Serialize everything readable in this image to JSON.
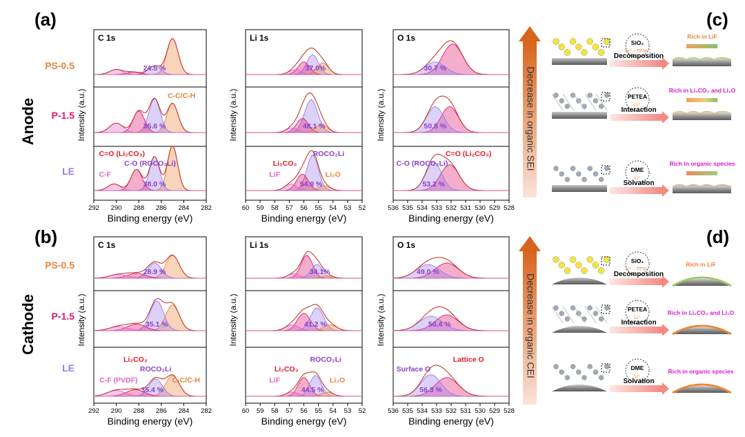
{
  "figure": {
    "panel_labels": {
      "a": "(a)",
      "b": "(b)",
      "c": "(c)",
      "d": "(d)"
    },
    "row_labels": {
      "anode": "Anode",
      "cathode": "Cathode"
    },
    "sample_labels": [
      "PS-0.5",
      "P-1.5",
      "LE"
    ],
    "arrows": {
      "anode": "Decrease in organic SEI",
      "cathode": "Decrease in organic CEI"
    },
    "xlabel": "Binding energy (eV)",
    "ylabel": "Intensity (a.u.)",
    "colors": {
      "ps": "#e8833a",
      "p": "#e0186c",
      "le": "#9b7ae8",
      "purple_text": "#8a3fc9",
      "red_text": "#e01b2a",
      "pink_text": "#e062c6",
      "orange_text": "#e8833a"
    }
  },
  "chart_data": [
    {
      "type": "line",
      "panel": "a",
      "title": "C 1s",
      "xlim": [
        292,
        282
      ],
      "xticks": [
        292,
        290,
        288,
        286,
        284,
        282
      ],
      "rows": [
        {
          "sample": "PS-0.5",
          "peaks": [
            {
              "c": 285.0,
              "a": 1.0,
              "w": 0.5,
              "color": "#e8833a"
            },
            {
              "c": 286.6,
              "a": 0.24,
              "w": 0.55,
              "color": "#9b7ae8"
            },
            {
              "c": 288.5,
              "a": 0.07,
              "w": 0.6,
              "color": "#e0186c"
            },
            {
              "c": 290.0,
              "a": 0.14,
              "w": 0.6,
              "color": "#e062c6"
            }
          ]
        },
        {
          "sample": "P-1.5",
          "peaks": [
            {
              "c": 285.0,
              "a": 0.62,
              "w": 0.5,
              "color": "#e8833a"
            },
            {
              "c": 286.6,
              "a": 0.72,
              "w": 0.5,
              "color": "#9b7ae8"
            },
            {
              "c": 288.0,
              "a": 0.46,
              "w": 0.5,
              "color": "#e0186c"
            },
            {
              "c": 290.0,
              "a": 0.2,
              "w": 0.6,
              "color": "#e062c6"
            }
          ]
        },
        {
          "sample": "LE",
          "peaks": [
            {
              "c": 285.0,
              "a": 0.95,
              "w": 0.45,
              "color": "#e8833a"
            },
            {
              "c": 286.6,
              "a": 0.72,
              "w": 0.45,
              "color": "#9b7ae8"
            },
            {
              "c": 288.2,
              "a": 0.45,
              "w": 0.5,
              "color": "#e0186c"
            },
            {
              "c": 290.2,
              "a": 0.14,
              "w": 0.55,
              "color": "#e062c6"
            }
          ]
        }
      ],
      "annotations": [
        {
          "row": 0,
          "text": "24.5 %",
          "x": 286.6,
          "color": "#8a3fc9"
        },
        {
          "row": 1,
          "text": "35.6 %",
          "x": 286.6,
          "color": "#8a3fc9"
        },
        {
          "row": 1,
          "text": "C-C/C-H",
          "x": 284.2,
          "color": "#e8833a"
        },
        {
          "row": 2,
          "text": "C-O (ROCO₂Li)",
          "x": 287.0,
          "color": "#8a3fc9"
        },
        {
          "row": 2,
          "text": "C=O (Li₂CO₃)",
          "x": 289.5,
          "color": "#e01b2a"
        },
        {
          "row": 2,
          "text": "C-F",
          "x": 291.0,
          "color": "#e062c6"
        },
        {
          "row": 2,
          "text": "38.0 %",
          "x": 286.6,
          "color": "#8a3fc9"
        }
      ]
    },
    {
      "type": "line",
      "panel": "a",
      "title": "Li 1s",
      "xlim": [
        60,
        52
      ],
      "xticks": [
        60,
        59,
        58,
        57,
        56,
        55,
        54,
        53,
        52
      ],
      "rows": [
        {
          "sample": "PS-0.5",
          "peaks": [
            {
              "c": 55.4,
              "a": 0.55,
              "w": 0.4,
              "color": "#9b7ae8"
            },
            {
              "c": 56.0,
              "a": 0.35,
              "w": 0.4,
              "color": "#e0186c"
            },
            {
              "c": 54.7,
              "a": 0.32,
              "w": 0.4,
              "color": "#e8833a"
            },
            {
              "c": 56.6,
              "a": 0.14,
              "w": 0.4,
              "color": "#e062c6"
            }
          ]
        },
        {
          "sample": "P-1.5",
          "peaks": [
            {
              "c": 55.5,
              "a": 0.7,
              "w": 0.45,
              "color": "#9b7ae8"
            },
            {
              "c": 56.1,
              "a": 0.3,
              "w": 0.4,
              "color": "#e0186c"
            },
            {
              "c": 54.8,
              "a": 0.18,
              "w": 0.4,
              "color": "#e8833a"
            },
            {
              "c": 56.8,
              "a": 0.1,
              "w": 0.4,
              "color": "#e062c6"
            }
          ]
        },
        {
          "sample": "LE",
          "peaks": [
            {
              "c": 55.4,
              "a": 0.75,
              "w": 0.4,
              "color": "#9b7ae8"
            },
            {
              "c": 56.1,
              "a": 0.35,
              "w": 0.4,
              "color": "#e0186c"
            },
            {
              "c": 54.6,
              "a": 0.1,
              "w": 0.4,
              "color": "#e8833a"
            },
            {
              "c": 56.9,
              "a": 0.14,
              "w": 0.4,
              "color": "#e062c6"
            }
          ]
        }
      ],
      "annotations": [
        {
          "row": 0,
          "text": "37.0%",
          "x": 55.2,
          "color": "#8a3fc9"
        },
        {
          "row": 1,
          "text": "48.1 %",
          "x": 55.3,
          "color": "#8a3fc9"
        },
        {
          "row": 2,
          "text": "Li₂CO₃",
          "x": 57.3,
          "color": "#e01b2a"
        },
        {
          "row": 2,
          "text": "ROCO₂Li",
          "x": 54.3,
          "color": "#8a3fc9"
        },
        {
          "row": 2,
          "text": "54.9 %",
          "x": 55.5,
          "color": "#8a3fc9"
        },
        {
          "row": 2,
          "text": "LiF",
          "x": 58.0,
          "color": "#e062c6"
        },
        {
          "row": 2,
          "text": "Li₂O",
          "x": 54.0,
          "color": "#e8833a"
        }
      ]
    },
    {
      "type": "line",
      "panel": "a",
      "title": "O 1s",
      "xlim": [
        536,
        528
      ],
      "xticks": [
        536,
        535,
        534,
        533,
        532,
        531,
        530,
        529,
        528
      ],
      "rows": [
        {
          "sample": "PS-0.5",
          "peaks": [
            {
              "c": 531.9,
              "a": 0.85,
              "w": 0.7,
              "color": "#e0186c"
            },
            {
              "c": 533.1,
              "a": 0.35,
              "w": 0.7,
              "color": "#9b7ae8"
            }
          ]
        },
        {
          "sample": "P-1.5",
          "peaks": [
            {
              "c": 532.1,
              "a": 0.55,
              "w": 0.6,
              "color": "#e0186c"
            },
            {
              "c": 533.1,
              "a": 0.55,
              "w": 0.6,
              "color": "#9b7ae8"
            }
          ]
        },
        {
          "sample": "LE",
          "peaks": [
            {
              "c": 532.1,
              "a": 0.55,
              "w": 0.65,
              "color": "#e0186c"
            },
            {
              "c": 533.2,
              "a": 0.6,
              "w": 0.55,
              "color": "#9b7ae8"
            }
          ]
        }
      ],
      "annotations": [
        {
          "row": 0,
          "text": "30.7 %",
          "x": 533.1,
          "color": "#8a3fc9"
        },
        {
          "row": 1,
          "text": "50.5 %",
          "x": 533.1,
          "color": "#8a3fc9"
        },
        {
          "row": 2,
          "text": "C-O (ROCO₂Li)",
          "x": 534.0,
          "color": "#8a3fc9"
        },
        {
          "row": 2,
          "text": "C=O (Li₂CO₃)",
          "x": 530.8,
          "color": "#e01b2a"
        },
        {
          "row": 2,
          "text": "53.2 %",
          "x": 533.2,
          "color": "#8a3fc9"
        }
      ]
    },
    {
      "type": "line",
      "panel": "b",
      "title": "C 1s",
      "xlim": [
        292,
        282
      ],
      "xticks": [
        292,
        290,
        288,
        286,
        284,
        282
      ],
      "rows": [
        {
          "sample": "PS-0.5",
          "peaks": [
            {
              "c": 285.0,
              "a": 0.75,
              "w": 0.6,
              "color": "#e8833a"
            },
            {
              "c": 286.6,
              "a": 0.5,
              "w": 0.6,
              "color": "#9b7ae8"
            },
            {
              "c": 288.2,
              "a": 0.16,
              "w": 0.8,
              "color": "#e0186c"
            },
            {
              "c": 289.8,
              "a": 0.12,
              "w": 0.8,
              "color": "#e062c6"
            }
          ]
        },
        {
          "sample": "P-1.5",
          "peaks": [
            {
              "c": 285.0,
              "a": 0.62,
              "w": 0.6,
              "color": "#e8833a"
            },
            {
              "c": 286.4,
              "a": 0.72,
              "w": 0.6,
              "color": "#9b7ae8"
            },
            {
              "c": 288.2,
              "a": 0.16,
              "w": 0.8,
              "color": "#e0186c"
            },
            {
              "c": 289.8,
              "a": 0.1,
              "w": 0.8,
              "color": "#e062c6"
            }
          ]
        },
        {
          "sample": "LE",
          "peaks": [
            {
              "c": 285.0,
              "a": 0.5,
              "w": 0.6,
              "color": "#e8833a"
            },
            {
              "c": 286.5,
              "a": 0.42,
              "w": 0.6,
              "color": "#9b7ae8"
            },
            {
              "c": 288.3,
              "a": 0.16,
              "w": 0.8,
              "color": "#e0186c"
            },
            {
              "c": 290.0,
              "a": 0.14,
              "w": 0.8,
              "color": "#e062c6"
            }
          ]
        }
      ],
      "annotations": [
        {
          "row": 0,
          "text": "28.9 %",
          "x": 286.6,
          "color": "#8a3fc9"
        },
        {
          "row": 1,
          "text": "35.1 %",
          "x": 286.4,
          "color": "#8a3fc9"
        },
        {
          "row": 2,
          "text": "ROCO₂Li",
          "x": 286.5,
          "color": "#8a3fc9"
        },
        {
          "row": 2,
          "text": "Li₂CO₃",
          "x": 288.3,
          "color": "#e01b2a"
        },
        {
          "row": 2,
          "text": "C-C/C-H",
          "x": 283.8,
          "color": "#e8833a"
        },
        {
          "row": 2,
          "text": "C-F (PVDF)",
          "x": 289.8,
          "color": "#e062c6"
        },
        {
          "row": 2,
          "text": "35.4 %",
          "x": 286.8,
          "color": "#8a3fc9"
        }
      ]
    },
    {
      "type": "line",
      "panel": "b",
      "title": "Li 1s",
      "xlim": [
        60,
        52
      ],
      "xticks": [
        60,
        59,
        58,
        57,
        56,
        55,
        54,
        53,
        52
      ],
      "rows": [
        {
          "sample": "PS-0.5",
          "peaks": [
            {
              "c": 55.8,
              "a": 0.75,
              "w": 0.4,
              "color": "#e0186c"
            },
            {
              "c": 55.1,
              "a": 0.45,
              "w": 0.4,
              "color": "#9b7ae8"
            },
            {
              "c": 56.7,
              "a": 0.15,
              "w": 0.4,
              "color": "#e062c6"
            },
            {
              "c": 54.4,
              "a": 0.08,
              "w": 0.4,
              "color": "#e8833a"
            }
          ]
        },
        {
          "sample": "P-1.5",
          "peaks": [
            {
              "c": 56.0,
              "a": 0.42,
              "w": 0.45,
              "color": "#e0186c"
            },
            {
              "c": 55.1,
              "a": 0.55,
              "w": 0.45,
              "color": "#9b7ae8"
            },
            {
              "c": 56.8,
              "a": 0.14,
              "w": 0.45,
              "color": "#e062c6"
            },
            {
              "c": 54.2,
              "a": 0.14,
              "w": 0.45,
              "color": "#e8833a"
            }
          ]
        },
        {
          "sample": "LE",
          "peaks": [
            {
              "c": 56.0,
              "a": 0.45,
              "w": 0.4,
              "color": "#e0186c"
            },
            {
              "c": 55.2,
              "a": 0.5,
              "w": 0.4,
              "color": "#9b7ae8"
            },
            {
              "c": 56.8,
              "a": 0.1,
              "w": 0.4,
              "color": "#e062c6"
            },
            {
              "c": 54.4,
              "a": 0.1,
              "w": 0.4,
              "color": "#e8833a"
            }
          ]
        }
      ],
      "annotations": [
        {
          "row": 0,
          "text": "34.1%",
          "x": 54.9,
          "color": "#8a3fc9"
        },
        {
          "row": 1,
          "text": "41.2 %",
          "x": 55.2,
          "color": "#8a3fc9"
        },
        {
          "row": 2,
          "text": "Li₂CO₃",
          "x": 57.2,
          "color": "#e01b2a"
        },
        {
          "row": 2,
          "text": "ROCO₂Li",
          "x": 54.5,
          "color": "#8a3fc9"
        },
        {
          "row": 2,
          "text": "LiF",
          "x": 58.0,
          "color": "#e062c6"
        },
        {
          "row": 2,
          "text": "44.5 %",
          "x": 55.4,
          "color": "#8a3fc9"
        },
        {
          "row": 2,
          "text": "Li₂O",
          "x": 53.7,
          "color": "#e8833a"
        }
      ]
    },
    {
      "type": "line",
      "panel": "b",
      "title": "O 1s",
      "xlim": [
        536,
        528
      ],
      "xticks": [
        536,
        535,
        534,
        533,
        532,
        531,
        530,
        529,
        528
      ],
      "rows": [
        {
          "sample": "PS-0.5",
          "peaks": [
            {
              "c": 532.3,
              "a": 0.5,
              "w": 0.8,
              "color": "#e0186c"
            },
            {
              "c": 533.6,
              "a": 0.45,
              "w": 0.8,
              "color": "#9b7ae8"
            }
          ]
        },
        {
          "sample": "P-1.5",
          "peaks": [
            {
              "c": 532.3,
              "a": 0.38,
              "w": 0.8,
              "color": "#e0186c"
            },
            {
              "c": 533.4,
              "a": 0.35,
              "w": 0.8,
              "color": "#9b7ae8"
            }
          ]
        },
        {
          "sample": "LE",
          "peaks": [
            {
              "c": 532.3,
              "a": 0.45,
              "w": 0.8,
              "color": "#e0186c"
            },
            {
              "c": 533.4,
              "a": 0.52,
              "w": 0.7,
              "color": "#9b7ae8"
            }
          ]
        }
      ],
      "annotations": [
        {
          "row": 0,
          "text": "49.0 %",
          "x": 533.6,
          "color": "#8a3fc9"
        },
        {
          "row": 1,
          "text": "50.4 %",
          "x": 532.8,
          "color": "#8a3fc9"
        },
        {
          "row": 2,
          "text": "Surface O",
          "x": 534.6,
          "color": "#8a3fc9"
        },
        {
          "row": 2,
          "text": "Lattice O",
          "x": 530.8,
          "color": "#e01b2a"
        },
        {
          "row": 2,
          "text": "56.3 %",
          "x": 533.4,
          "color": "#8a3fc9"
        }
      ]
    }
  ],
  "schematic": {
    "c": {
      "rows": [
        {
          "circle_main": "SiO₂",
          "circle_sub": "Li⁺···TFSI⁻",
          "process": "Decomposition",
          "result": "Rich in LiF"
        },
        {
          "circle_main": "PETEA",
          "circle_sub": "Li⁺",
          "process": "Interaction",
          "result": "Rich in Li₂CO₃ and Li₂O"
        },
        {
          "circle_main": "DME",
          "circle_sub": "Li⁺",
          "process": "Solvation",
          "result": "Rich in organic species"
        }
      ]
    },
    "d": {
      "rows": [
        {
          "circle_main": "SiO₂",
          "circle_sub": "Li⁺···TFSI⁻",
          "process": "Decomposition",
          "result": "Rich in LiF"
        },
        {
          "circle_main": "PETEA",
          "circle_sub": "Li⁺",
          "process": "Interaction",
          "result": "Rich in Li₂CO₃ and Li₂O"
        },
        {
          "circle_main": "DME",
          "circle_sub": "Li⁺",
          "process": "Solvation",
          "result": "Rich in organic species"
        }
      ]
    }
  }
}
